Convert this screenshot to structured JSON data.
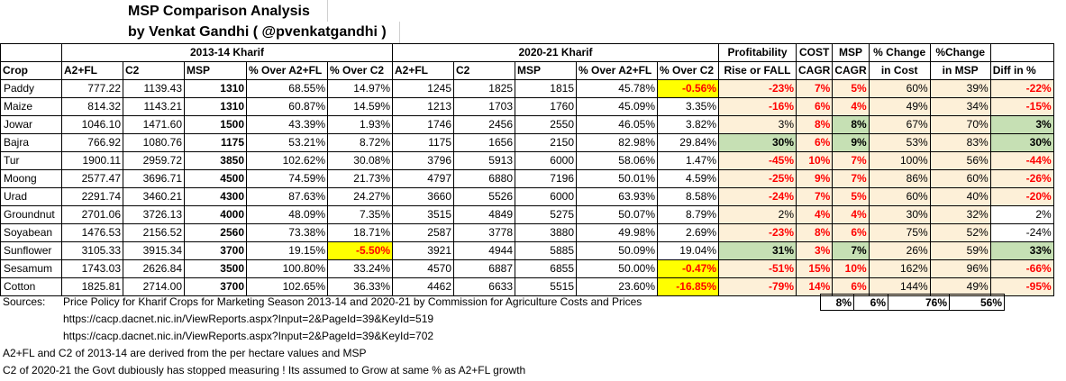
{
  "title_line1": "MSP Comparison Analysis",
  "title_line2": "by Venkat Gandhi ( @pvenkatgandhi )",
  "group_headers": {
    "kharif_2013": "2013-14 Kharif",
    "kharif_2020": "2020-21 Kharif",
    "profitability": "Profitability",
    "cost": "COST",
    "msp": "MSP",
    "pct_change_cost_1": "% Change",
    "pct_change_msp_1": "%Change"
  },
  "col_headers": {
    "crop": "Crop",
    "a2fl_13": "A2+FL",
    "c2_13": "C2",
    "msp_13": "MSP",
    "over_a2fl_13": "% Over A2+FL",
    "over_c2_13": "% Over C2",
    "a2fl_20": "A2+FL",
    "c2_20": "C2",
    "msp_20": "MSP",
    "over_a2fl_20": "% Over A2+FL",
    "over_c2_20": "% Over C2",
    "rise_fall": "Rise or FALL",
    "cost_cagr": "CAGR",
    "msp_cagr": "CAGR",
    "pct_change_cost_2": "in Cost",
    "pct_change_msp_2": "in MSP",
    "diff": "Diff in %"
  },
  "rows": [
    {
      "crop": "Paddy",
      "a2fl13": "777.22",
      "c213": "1139.43",
      "msp13": "1310",
      "oa13": "68.55%",
      "oc13": "14.97%",
      "a2fl20": "1245",
      "c220": "1825",
      "msp20": "1815",
      "oa20": "45.78%",
      "oc20": "-0.56%",
      "pf": "-23%",
      "cc": "7%",
      "mc": "5%",
      "chc": "60%",
      "chm": "39%",
      "diff": "-22%"
    },
    {
      "crop": "Maize",
      "a2fl13": "814.32",
      "c213": "1143.21",
      "msp13": "1310",
      "oa13": "60.87%",
      "oc13": "14.59%",
      "a2fl20": "1213",
      "c220": "1703",
      "msp20": "1760",
      "oa20": "45.09%",
      "oc20": "3.35%",
      "pf": "-16%",
      "cc": "6%",
      "mc": "4%",
      "chc": "49%",
      "chm": "34%",
      "diff": "-15%"
    },
    {
      "crop": "Jowar",
      "a2fl13": "1046.10",
      "c213": "1471.60",
      "msp13": "1500",
      "oa13": "43.39%",
      "oc13": "1.93%",
      "a2fl20": "1746",
      "c220": "2456",
      "msp20": "2550",
      "oa20": "46.05%",
      "oc20": "3.82%",
      "pf": "3%",
      "cc": "8%",
      "mc": "8%",
      "chc": "67%",
      "chm": "70%",
      "diff": "3%"
    },
    {
      "crop": "Bajra",
      "a2fl13": "766.92",
      "c213": "1080.76",
      "msp13": "1175",
      "oa13": "53.21%",
      "oc13": "8.72%",
      "a2fl20": "1175",
      "c220": "1656",
      "msp20": "2150",
      "oa20": "82.98%",
      "oc20": "29.84%",
      "pf": "30%",
      "cc": "6%",
      "mc": "9%",
      "chc": "53%",
      "chm": "83%",
      "diff": "30%"
    },
    {
      "crop": "Tur",
      "a2fl13": "1900.11",
      "c213": "2959.72",
      "msp13": "3850",
      "oa13": "102.62%",
      "oc13": "30.08%",
      "a2fl20": "3796",
      "c220": "5913",
      "msp20": "6000",
      "oa20": "58.06%",
      "oc20": "1.47%",
      "pf": "-45%",
      "cc": "10%",
      "mc": "7%",
      "chc": "100%",
      "chm": "56%",
      "diff": "-44%"
    },
    {
      "crop": "Moong",
      "a2fl13": "2577.47",
      "c213": "3696.71",
      "msp13": "4500",
      "oa13": "74.59%",
      "oc13": "21.73%",
      "a2fl20": "4797",
      "c220": "6880",
      "msp20": "7196",
      "oa20": "50.01%",
      "oc20": "4.59%",
      "pf": "-25%",
      "cc": "9%",
      "mc": "7%",
      "chc": "86%",
      "chm": "60%",
      "diff": "-26%"
    },
    {
      "crop": "Urad",
      "a2fl13": "2291.74",
      "c213": "3460.21",
      "msp13": "4300",
      "oa13": "87.63%",
      "oc13": "24.27%",
      "a2fl20": "3660",
      "c220": "5526",
      "msp20": "6000",
      "oa20": "63.93%",
      "oc20": "8.58%",
      "pf": "-24%",
      "cc": "7%",
      "mc": "5%",
      "chc": "60%",
      "chm": "40%",
      "diff": "-20%"
    },
    {
      "crop": "Groundnut",
      "a2fl13": "2701.06",
      "c213": "3726.13",
      "msp13": "4000",
      "oa13": "48.09%",
      "oc13": "7.35%",
      "a2fl20": "3515",
      "c220": "4849",
      "msp20": "5275",
      "oa20": "50.07%",
      "oc20": "8.79%",
      "pf": "2%",
      "cc": "4%",
      "mc": "4%",
      "chc": "30%",
      "chm": "32%",
      "diff": "2%"
    },
    {
      "crop": "Soyabean",
      "a2fl13": "1476.53",
      "c213": "2156.52",
      "msp13": "2560",
      "oa13": "73.38%",
      "oc13": "18.71%",
      "a2fl20": "2587",
      "c220": "3778",
      "msp20": "3880",
      "oa20": "49.98%",
      "oc20": "2.69%",
      "pf": "-23%",
      "cc": "8%",
      "mc": "6%",
      "chc": "75%",
      "chm": "52%",
      "diff": "-24%"
    },
    {
      "crop": "Sunflower",
      "a2fl13": "3105.33",
      "c213": "3915.34",
      "msp13": "3700",
      "oa13": "19.15%",
      "oc13": "-5.50%",
      "a2fl20": "3921",
      "c220": "4944",
      "msp20": "5885",
      "oa20": "50.09%",
      "oc20": "19.04%",
      "pf": "31%",
      "cc": "3%",
      "mc": "7%",
      "chc": "26%",
      "chm": "59%",
      "diff": "33%"
    },
    {
      "crop": "Sesamum",
      "a2fl13": "1743.03",
      "c213": "2626.84",
      "msp13": "3500",
      "oa13": "100.80%",
      "oc13": "33.24%",
      "a2fl20": "4570",
      "c220": "6887",
      "msp20": "6855",
      "oa20": "50.00%",
      "oc20": "-0.47%",
      "pf": "-51%",
      "cc": "15%",
      "mc": "10%",
      "chc": "162%",
      "chm": "96%",
      "diff": "-66%"
    },
    {
      "crop": "Cotton",
      "a2fl13": "1825.81",
      "c213": "2714.00",
      "msp13": "3700",
      "oa13": "102.65%",
      "oc13": "36.33%",
      "a2fl20": "4462",
      "c220": "6633",
      "msp20": "5515",
      "oa20": "23.60%",
      "oc20": "-16.85%",
      "pf": "-79%",
      "cc": "14%",
      "mc": "6%",
      "chc": "144%",
      "chm": "49%",
      "diff": "-95%"
    }
  ],
  "summary": {
    "cost_cagr": "8%",
    "msp_cagr": "6%",
    "chc": "76%",
    "chm": "56%"
  },
  "notes": {
    "sources_label": "Sources:",
    "sources_text": "Price Policy for Kharif Crops for Marketing Season 2013-14 and 2020-21 by Commission for Agriculture Costs and Prices",
    "url1": "https://cacp.dacnet.nic.in/ViewReports.aspx?Input=2&PageId=39&KeyId=519",
    "url2": "https://cacp.dacnet.nic.in/ViewReports.aspx?Input=2&PageId=39&KeyId=702",
    "note1": "A2+FL and C2 of 2013-14 are derived from the per hectare values and MSP",
    "note2": "C2 of 2020-21 the Govt dubiously has stopped measuring ! Its assumed to Grow at same % as A2+FL growth"
  },
  "colors": {
    "peach": "#fdf0d8",
    "green": "#c6e0b4",
    "yellow": "#ffff00",
    "negative": "#ff0000"
  }
}
